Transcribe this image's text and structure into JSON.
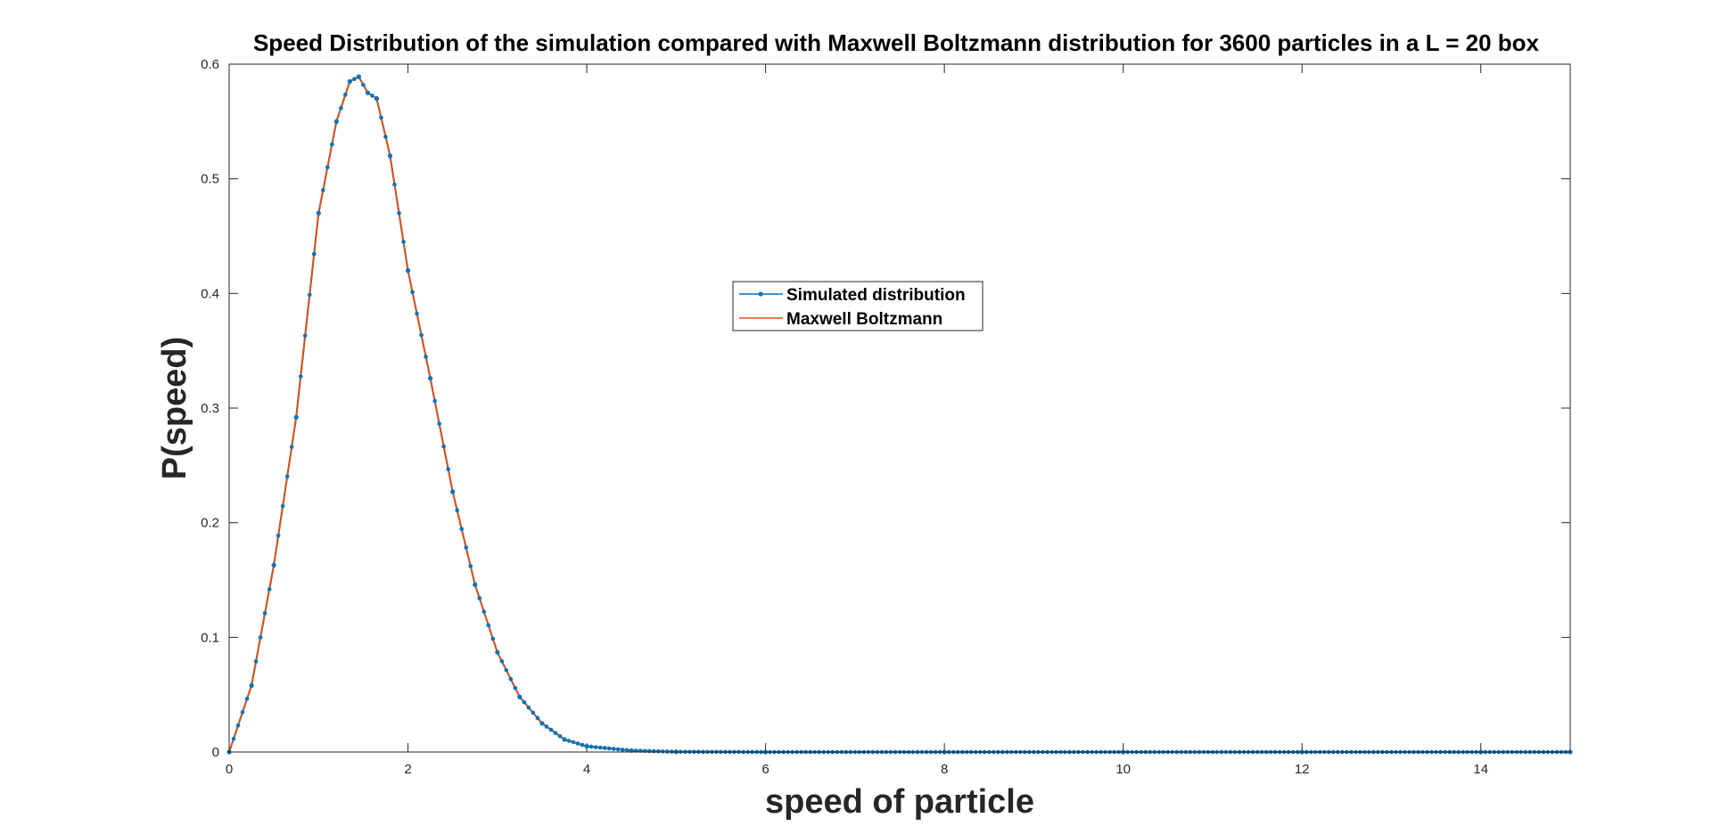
{
  "chart_data": {
    "type": "line",
    "title": "Speed Distribution of the simulation compared with Maxwell Boltzmann distribution for 3600 particles in a L = 20 box",
    "xlabel": "speed of particle",
    "ylabel": "P(speed)",
    "xlim": [
      0,
      15
    ],
    "ylim": [
      0,
      0.6
    ],
    "xticks": [
      0,
      2,
      4,
      6,
      8,
      10,
      12,
      14
    ],
    "yticks": [
      0,
      0.1,
      0.2,
      0.3,
      0.4,
      0.5,
      0.6
    ],
    "xtick_labels": [
      "0",
      "2",
      "4",
      "6",
      "8",
      "10",
      "12",
      "14"
    ],
    "ytick_labels": [
      "0",
      "0.1",
      "0.2",
      "0.3",
      "0.4",
      "0.5",
      "0.6"
    ],
    "legend_position": "center",
    "colors": {
      "simulated": "#0072BD",
      "maxwell": "#D95319",
      "axes": "#262626"
    },
    "series": [
      {
        "name": "Simulated distribution",
        "marker": "dot",
        "x": [
          0,
          0.25,
          0.5,
          0.75,
          1.0,
          1.2,
          1.35,
          1.45,
          1.55,
          1.65,
          1.8,
          2.0,
          2.25,
          2.5,
          2.75,
          3.0,
          3.25,
          3.5,
          3.75,
          4.0,
          4.5,
          5.0,
          6.0,
          8.0,
          10.0,
          12.0,
          14.0,
          15.0
        ],
        "y": [
          0,
          0.058,
          0.163,
          0.292,
          0.47,
          0.55,
          0.585,
          0.589,
          0.575,
          0.57,
          0.52,
          0.42,
          0.326,
          0.227,
          0.146,
          0.087,
          0.048,
          0.025,
          0.011,
          0.005,
          0.0013,
          0.0002,
          0,
          0,
          0,
          0,
          0,
          0
        ]
      },
      {
        "name": "Maxwell Boltzmann",
        "marker": "none"
      }
    ]
  }
}
